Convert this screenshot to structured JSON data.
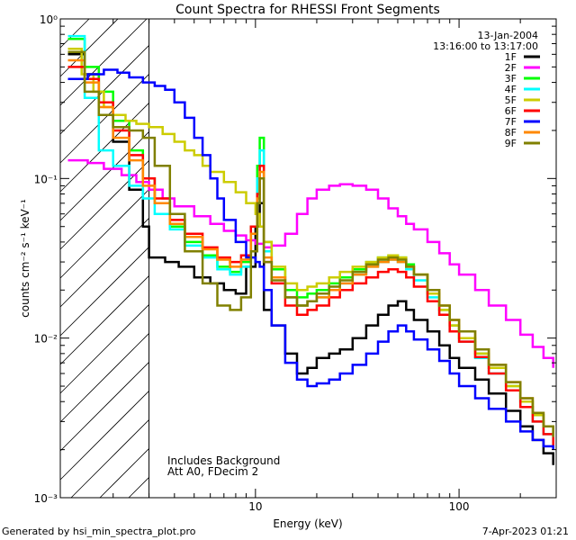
{
  "chart_data": {
    "type": "line",
    "title": "Count Spectra for RHESSI Front Segments",
    "xlabel": "Energy (keV)",
    "ylabel": "counts cm⁻² s⁻¹ keV⁻¹",
    "x_scale": "log",
    "y_scale": "log",
    "xlim": [
      1.1,
      300
    ],
    "ylim": [
      0.001,
      1.0
    ],
    "x_ticks": [
      {
        "value": 10,
        "label": "10"
      },
      {
        "value": 100,
        "label": "100"
      }
    ],
    "y_ticks": [
      {
        "value": 1.0,
        "label": "10⁰"
      },
      {
        "value": 0.1,
        "label": "10⁻¹"
      },
      {
        "value": 0.01,
        "label": "10⁻²"
      },
      {
        "value": 0.001,
        "label": "10⁻³"
      }
    ],
    "annotation_date": "13-Jan-2004",
    "annotation_time": "13:16:00 to 13:17:00",
    "notes": [
      "Includes Background",
      "Att A0, FDecim 2"
    ],
    "shaded_region_max_energy": 3,
    "series": [
      {
        "name": "1F",
        "color": "#000000",
        "x": [
          1.2,
          1.45,
          1.7,
          2.0,
          2.4,
          2.8,
          3.0,
          3.6,
          4.2,
          5.0,
          6.0,
          7.0,
          8.0,
          9.0,
          10.0,
          10.5,
          11,
          12,
          14,
          16,
          18,
          20,
          23,
          26,
          30,
          35,
          40,
          45,
          50,
          55,
          60,
          70,
          80,
          90,
          100,
          120,
          140,
          170,
          200,
          230,
          260,
          290
        ],
        "y": [
          0.6,
          0.45,
          0.3,
          0.17,
          0.085,
          0.05,
          0.032,
          0.03,
          0.028,
          0.024,
          0.022,
          0.02,
          0.019,
          0.028,
          0.05,
          0.07,
          0.015,
          0.012,
          0.008,
          0.006,
          0.0065,
          0.0075,
          0.008,
          0.0085,
          0.01,
          0.012,
          0.014,
          0.016,
          0.017,
          0.015,
          0.013,
          0.011,
          0.009,
          0.0075,
          0.0065,
          0.0055,
          0.0045,
          0.0035,
          0.0028,
          0.0023,
          0.0019,
          0.0016
        ]
      },
      {
        "name": "2F",
        "color": "#ff00ff",
        "x": [
          1.2,
          1.5,
          1.8,
          2.2,
          2.6,
          3.0,
          3.5,
          4.0,
          5.0,
          6.0,
          7.0,
          8.0,
          9.0,
          10.0,
          11,
          12,
          14,
          16,
          18,
          20,
          23,
          26,
          30,
          35,
          40,
          45,
          50,
          55,
          60,
          70,
          80,
          90,
          100,
          120,
          140,
          170,
          200,
          230,
          260,
          290
        ],
        "y": [
          0.13,
          0.125,
          0.115,
          0.105,
          0.095,
          0.085,
          0.075,
          0.067,
          0.058,
          0.052,
          0.047,
          0.044,
          0.041,
          0.039,
          0.037,
          0.038,
          0.045,
          0.06,
          0.075,
          0.085,
          0.09,
          0.092,
          0.09,
          0.085,
          0.075,
          0.065,
          0.058,
          0.052,
          0.048,
          0.04,
          0.034,
          0.029,
          0.025,
          0.02,
          0.016,
          0.013,
          0.0105,
          0.0088,
          0.0075,
          0.0065
        ]
      },
      {
        "name": "3F",
        "color": "#00ff00",
        "x": [
          1.2,
          1.45,
          1.7,
          2.0,
          2.4,
          2.8,
          3.2,
          3.8,
          4.5,
          5.5,
          6.5,
          7.5,
          8.5,
          9.5,
          10.2,
          10.5,
          11,
          12,
          14,
          16,
          18,
          20,
          23,
          26,
          30,
          35,
          40,
          45,
          50,
          55,
          60,
          70,
          80,
          90,
          100,
          120,
          140,
          170,
          200,
          230,
          260,
          290
        ],
        "y": [
          0.75,
          0.5,
          0.35,
          0.23,
          0.15,
          0.1,
          0.07,
          0.05,
          0.04,
          0.033,
          0.028,
          0.026,
          0.03,
          0.05,
          0.12,
          0.18,
          0.04,
          0.027,
          0.02,
          0.018,
          0.019,
          0.02,
          0.022,
          0.024,
          0.027,
          0.03,
          0.032,
          0.033,
          0.032,
          0.029,
          0.025,
          0.019,
          0.015,
          0.012,
          0.01,
          0.008,
          0.0065,
          0.005,
          0.004,
          0.0033,
          0.0028,
          0.0024
        ]
      },
      {
        "name": "4F",
        "color": "#00ffff",
        "x": [
          1.2,
          1.45,
          1.7,
          2.0,
          2.4,
          2.8,
          3.2,
          3.8,
          4.5,
          5.5,
          6.5,
          7.5,
          8.5,
          9.5,
          10.2,
          10.5,
          11,
          12,
          14,
          16,
          18,
          20,
          23,
          26,
          30,
          35,
          40,
          45,
          50,
          55,
          60,
          70,
          80,
          90,
          100,
          120,
          140,
          170,
          200,
          230,
          260,
          290
        ],
        "y": [
          0.78,
          0.32,
          0.15,
          0.12,
          0.09,
          0.075,
          0.06,
          0.048,
          0.038,
          0.032,
          0.027,
          0.025,
          0.028,
          0.045,
          0.1,
          0.15,
          0.035,
          0.024,
          0.018,
          0.016,
          0.017,
          0.018,
          0.02,
          0.022,
          0.025,
          0.028,
          0.03,
          0.031,
          0.03,
          0.027,
          0.023,
          0.018,
          0.014,
          0.011,
          0.0095,
          0.0075,
          0.006,
          0.0047,
          0.0037,
          0.003,
          0.0025,
          0.0022
        ]
      },
      {
        "name": "5F",
        "color": "#cccc00",
        "x": [
          1.2,
          1.4,
          1.6,
          1.8,
          2.0,
          2.3,
          2.6,
          3.0,
          3.5,
          4.0,
          4.5,
          5.0,
          5.5,
          6.0,
          7.0,
          8.0,
          9.0,
          10.0,
          10.5,
          11,
          12,
          14,
          16,
          18,
          20,
          23,
          26,
          30,
          35,
          40,
          45,
          50,
          55,
          60,
          70,
          80,
          90,
          100,
          120,
          140,
          170,
          200,
          230,
          260,
          290
        ],
        "y": [
          0.65,
          0.45,
          0.35,
          0.28,
          0.25,
          0.23,
          0.22,
          0.21,
          0.19,
          0.17,
          0.15,
          0.14,
          0.12,
          0.11,
          0.095,
          0.082,
          0.07,
          0.06,
          0.05,
          0.04,
          0.028,
          0.022,
          0.02,
          0.021,
          0.022,
          0.024,
          0.026,
          0.028,
          0.03,
          0.032,
          0.033,
          0.032,
          0.028,
          0.025,
          0.019,
          0.015,
          0.012,
          0.01,
          0.008,
          0.0065,
          0.005,
          0.004,
          0.0033,
          0.0028,
          0.0024
        ]
      },
      {
        "name": "6F",
        "color": "#ff0000",
        "x": [
          1.2,
          1.45,
          1.7,
          2.0,
          2.4,
          2.8,
          3.2,
          3.8,
          4.5,
          5.5,
          6.5,
          7.5,
          8.5,
          9.5,
          10.2,
          10.5,
          11,
          12,
          14,
          16,
          18,
          20,
          23,
          26,
          30,
          35,
          40,
          45,
          50,
          55,
          60,
          70,
          80,
          90,
          100,
          120,
          140,
          170,
          200,
          230,
          260,
          290
        ],
        "y": [
          0.5,
          0.42,
          0.3,
          0.2,
          0.14,
          0.1,
          0.075,
          0.055,
          0.045,
          0.037,
          0.032,
          0.03,
          0.033,
          0.05,
          0.08,
          0.12,
          0.03,
          0.022,
          0.016,
          0.014,
          0.015,
          0.016,
          0.018,
          0.02,
          0.022,
          0.024,
          0.026,
          0.027,
          0.026,
          0.024,
          0.021,
          0.017,
          0.014,
          0.011,
          0.0095,
          0.0076,
          0.006,
          0.0047,
          0.0037,
          0.003,
          0.0025,
          0.0021
        ]
      },
      {
        "name": "7F",
        "color": "#0000ff",
        "x": [
          1.2,
          1.5,
          1.8,
          2.1,
          2.4,
          2.8,
          3.2,
          3.6,
          4.0,
          4.5,
          5.0,
          5.5,
          6.0,
          6.5,
          7.0,
          8.0,
          9.0,
          10.0,
          10.5,
          11,
          12,
          14,
          16,
          18,
          20,
          23,
          26,
          30,
          35,
          40,
          45,
          50,
          55,
          60,
          70,
          80,
          90,
          100,
          120,
          140,
          170,
          200,
          230,
          260,
          290
        ],
        "y": [
          0.42,
          0.45,
          0.48,
          0.46,
          0.43,
          0.4,
          0.38,
          0.36,
          0.3,
          0.24,
          0.18,
          0.14,
          0.1,
          0.075,
          0.055,
          0.04,
          0.032,
          0.03,
          0.028,
          0.02,
          0.012,
          0.007,
          0.0055,
          0.005,
          0.0052,
          0.0055,
          0.006,
          0.0068,
          0.008,
          0.0095,
          0.011,
          0.012,
          0.011,
          0.0098,
          0.0085,
          0.0072,
          0.006,
          0.005,
          0.0042,
          0.0036,
          0.003,
          0.0026,
          0.0023,
          0.0021,
          0.002
        ]
      },
      {
        "name": "8F",
        "color": "#ff8800",
        "x": [
          1.2,
          1.45,
          1.7,
          2.0,
          2.4,
          2.8,
          3.2,
          3.8,
          4.5,
          5.5,
          6.5,
          7.5,
          8.5,
          9.5,
          10.2,
          10.5,
          11,
          12,
          14,
          16,
          18,
          20,
          23,
          26,
          30,
          35,
          40,
          45,
          50,
          55,
          60,
          70,
          80,
          90,
          100,
          120,
          140,
          170,
          200,
          230,
          260,
          290
        ],
        "y": [
          0.55,
          0.4,
          0.28,
          0.18,
          0.13,
          0.09,
          0.07,
          0.052,
          0.043,
          0.036,
          0.031,
          0.028,
          0.031,
          0.045,
          0.075,
          0.11,
          0.032,
          0.024,
          0.018,
          0.016,
          0.017,
          0.018,
          0.02,
          0.022,
          0.025,
          0.028,
          0.03,
          0.031,
          0.03,
          0.028,
          0.025,
          0.02,
          0.016,
          0.013,
          0.011,
          0.0085,
          0.0068,
          0.0053,
          0.0042,
          0.0034,
          0.0028,
          0.0024
        ]
      },
      {
        "name": "9F",
        "color": "#808000",
        "x": [
          1.2,
          1.45,
          1.7,
          2.0,
          2.4,
          2.8,
          3.2,
          3.8,
          4.5,
          5.5,
          6.5,
          7.5,
          8.5,
          9.5,
          10.2,
          10.5,
          11,
          12,
          14,
          16,
          18,
          20,
          23,
          26,
          30,
          35,
          40,
          45,
          50,
          55,
          60,
          70,
          80,
          90,
          100,
          120,
          140,
          170,
          200,
          230,
          260,
          290
        ],
        "y": [
          0.62,
          0.35,
          0.25,
          0.21,
          0.2,
          0.18,
          0.12,
          0.06,
          0.035,
          0.022,
          0.016,
          0.015,
          0.018,
          0.035,
          0.07,
          0.1,
          0.03,
          0.023,
          0.018,
          0.016,
          0.017,
          0.019,
          0.021,
          0.023,
          0.026,
          0.029,
          0.031,
          0.032,
          0.031,
          0.028,
          0.025,
          0.02,
          0.016,
          0.013,
          0.011,
          0.0085,
          0.0068,
          0.0053,
          0.0042,
          0.0034,
          0.0028,
          0.0024
        ]
      }
    ]
  },
  "footer": {
    "generated_by": "Generated by hsi_min_spectra_plot.pro",
    "timestamp": "7-Apr-2023 01:21"
  }
}
